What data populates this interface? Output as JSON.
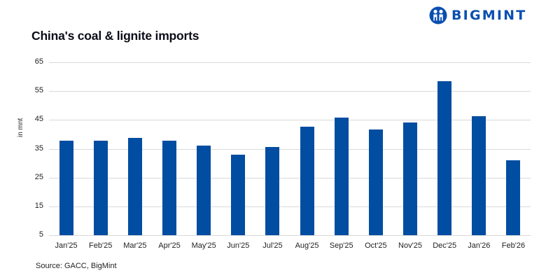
{
  "header": {
    "title": "China's coal & lignite imports",
    "logo_text": "BIGMINT",
    "logo_icon": "bigmint-people-icon"
  },
  "colors": {
    "bar": "#004da1",
    "brand": "#0a4fb0",
    "grid": "#d9d9d9"
  },
  "footer": {
    "source": "Source: GACC, BigMint"
  },
  "chart_data": {
    "type": "bar",
    "title": "China's coal & lignite imports",
    "xlabel": "",
    "ylabel": "in mnt",
    "ylim": [
      5,
      65
    ],
    "yticks": [
      5,
      15,
      25,
      35,
      45,
      55,
      65
    ],
    "grid": true,
    "legend": null,
    "categories": [
      "Jan'25",
      "Feb'25",
      "Mar'25",
      "Apr'25",
      "May'25",
      "Jun'25",
      "Jul'25",
      "Aug'25",
      "Sep'25",
      "Oct'25",
      "Nov'25",
      "Dec'25",
      "Jan'26",
      "Feb'26"
    ],
    "values": [
      37.9,
      37.9,
      38.7,
      37.7,
      36.0,
      32.9,
      35.6,
      42.6,
      45.8,
      41.7,
      44.1,
      58.5,
      46.3,
      30.9
    ],
    "source": "Source: GACC, BigMint"
  }
}
